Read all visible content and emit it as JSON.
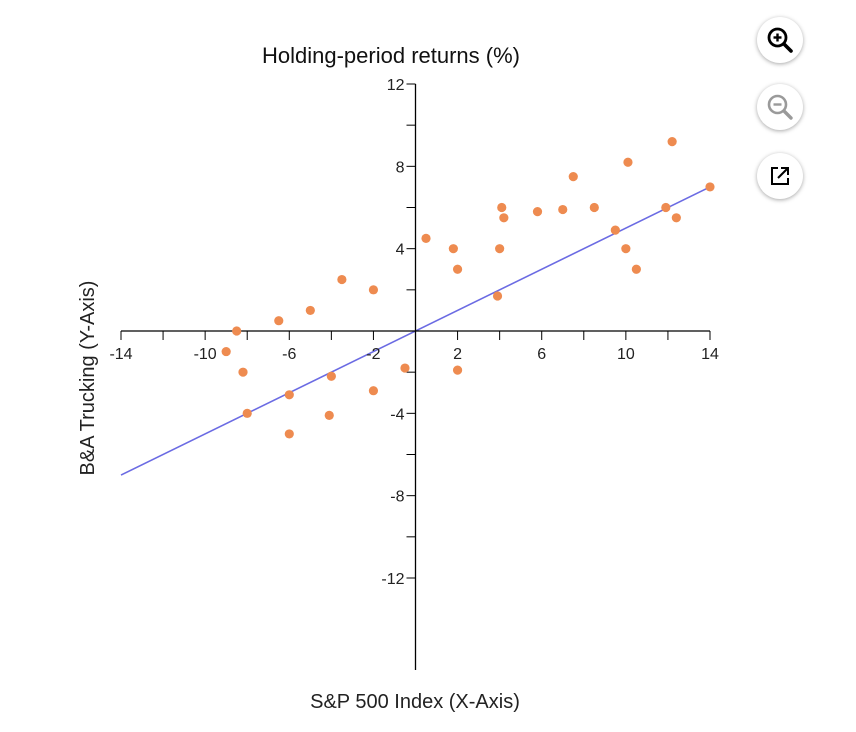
{
  "chart_data": {
    "type": "scatter",
    "title": "Holding-period returns (%)",
    "xlabel": "S&P 500 Index (X-Axis)",
    "ylabel": "B&A Trucking  (Y-Axis)",
    "xlim": [
      -14,
      14
    ],
    "ylim": [
      -12,
      12
    ],
    "x_tick_labels": [
      "-14",
      "-10",
      "-6",
      "-2",
      "2",
      "6",
      "10",
      "14"
    ],
    "y_tick_labels": [
      "12",
      "8",
      "4",
      "-4",
      "-8",
      "-12"
    ],
    "points": [
      {
        "x": -8.5,
        "y": 0
      },
      {
        "x": -9,
        "y": -1
      },
      {
        "x": -8.2,
        "y": -2
      },
      {
        "x": -8,
        "y": -4
      },
      {
        "x": -6.5,
        "y": 0.5
      },
      {
        "x": -6,
        "y": -3.1
      },
      {
        "x": -6,
        "y": -5
      },
      {
        "x": -5,
        "y": 1
      },
      {
        "x": -4,
        "y": -2.2
      },
      {
        "x": -4.1,
        "y": -4.1
      },
      {
        "x": -3.5,
        "y": 2.5
      },
      {
        "x": -2,
        "y": 2
      },
      {
        "x": -2,
        "y": -2.9
      },
      {
        "x": -0.5,
        "y": -1.8
      },
      {
        "x": 0.5,
        "y": 4.5
      },
      {
        "x": 1.8,
        "y": 4
      },
      {
        "x": 2,
        "y": 3
      },
      {
        "x": 2,
        "y": -1.9
      },
      {
        "x": 3.9,
        "y": 1.7
      },
      {
        "x": 4,
        "y": 4
      },
      {
        "x": 4.1,
        "y": 6
      },
      {
        "x": 4.2,
        "y": 5.5
      },
      {
        "x": 5.8,
        "y": 5.8
      },
      {
        "x": 7,
        "y": 5.9
      },
      {
        "x": 7.5,
        "y": 7.5
      },
      {
        "x": 8.5,
        "y": 6
      },
      {
        "x": 9.5,
        "y": 4.9
      },
      {
        "x": 10,
        "y": 4
      },
      {
        "x": 10.1,
        "y": 8.2
      },
      {
        "x": 10.5,
        "y": 3
      },
      {
        "x": 11.9,
        "y": 6
      },
      {
        "x": 12.2,
        "y": 9.2
      },
      {
        "x": 12.4,
        "y": 5.5
      },
      {
        "x": 14,
        "y": 7
      }
    ],
    "fit_line": {
      "x": [
        -14,
        14
      ],
      "y": [
        -7,
        7
      ]
    },
    "colors": {
      "points": "#EE8B50",
      "fit_line": "#6B6BE3"
    }
  },
  "toolbar": {
    "zoom_in_icon": "zoom-in-icon",
    "zoom_out_icon": "zoom-out-icon",
    "popout_icon": "external-link-icon"
  }
}
